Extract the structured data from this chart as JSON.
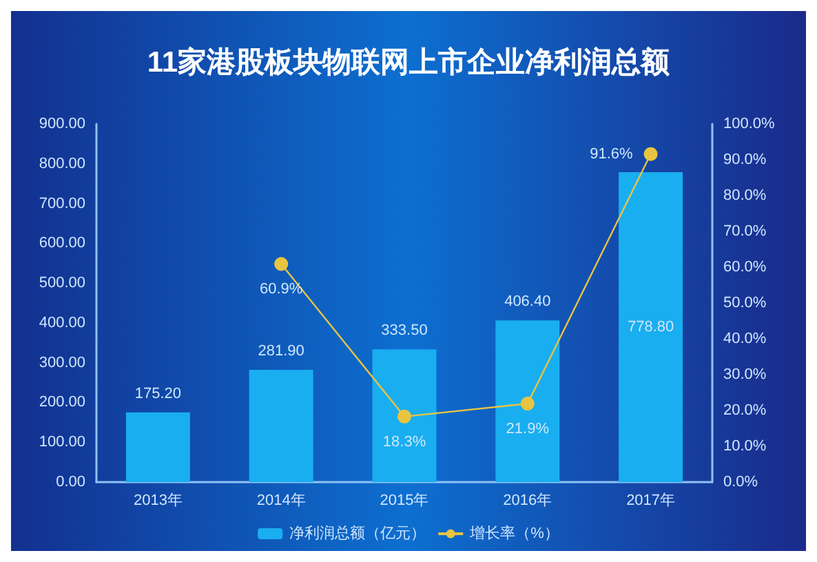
{
  "chart_data": {
    "type": "bar",
    "title": "11家港股板块物联网上市企业净利润总额",
    "categories": [
      "2013年",
      "2014年",
      "2015年",
      "2016年",
      "2017年"
    ],
    "series": [
      {
        "name": "净利润总额（亿元）",
        "color": "#19aef0",
        "values": [
          175.2,
          281.9,
          333.5,
          406.4,
          778.8
        ],
        "value_labels": [
          "175.20",
          "281.90",
          "333.50",
          "406.40",
          "778.80"
        ]
      },
      {
        "name": "增长率（%）",
        "type": "line",
        "axis": "y2",
        "color": "#e8c440",
        "values": [
          null,
          60.9,
          18.3,
          21.9,
          91.6
        ],
        "value_labels": [
          null,
          "60.9%",
          "18.3%",
          "21.9%",
          "91.6%"
        ]
      }
    ],
    "ylim": [
      0,
      900
    ],
    "yticks": [
      {
        "value": 0,
        "label": "0.00"
      },
      {
        "value": 100,
        "label": "100.00"
      },
      {
        "value": 200,
        "label": "200.00"
      },
      {
        "value": 300,
        "label": "300.00"
      },
      {
        "value": 400,
        "label": "400.00"
      },
      {
        "value": 500,
        "label": "500.00"
      },
      {
        "value": 600,
        "label": "600.00"
      },
      {
        "value": 700,
        "label": "700.00"
      },
      {
        "value": 800,
        "label": "800.00"
      },
      {
        "value": 900,
        "label": "900.00"
      }
    ],
    "y2lim": [
      0,
      100
    ],
    "y2ticks": [
      {
        "value": 0,
        "label": "0.0%"
      },
      {
        "value": 10,
        "label": "10.0%"
      },
      {
        "value": 20,
        "label": "20.0%"
      },
      {
        "value": 30,
        "label": "30.0%"
      },
      {
        "value": 40,
        "label": "40.0%"
      },
      {
        "value": 50,
        "label": "50.0%"
      },
      {
        "value": 60,
        "label": "60.0%"
      },
      {
        "value": 70,
        "label": "70.0%"
      },
      {
        "value": 80,
        "label": "80.0%"
      },
      {
        "value": 90,
        "label": "90.0%"
      },
      {
        "value": 100,
        "label": "100.0%"
      }
    ],
    "grid": false,
    "legend": "bottom",
    "marker": "circle",
    "line_style": "solid"
  }
}
